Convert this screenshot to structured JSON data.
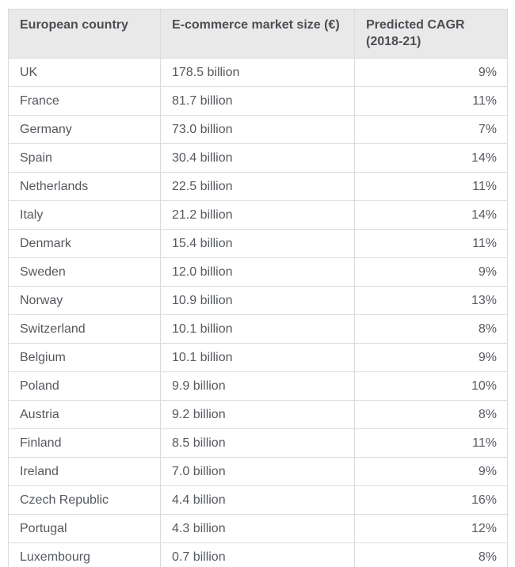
{
  "chart_data": {
    "type": "table",
    "title": "",
    "columns": [
      "European country",
      "E-commerce market size (€)",
      "Predicted CAGR (2018-21)"
    ],
    "rows": [
      [
        "UK",
        "178.5 billion",
        "9%"
      ],
      [
        "France",
        "81.7 billion",
        "11%"
      ],
      [
        "Germany",
        "73.0 billion",
        "7%"
      ],
      [
        "Spain",
        "30.4 billion",
        "14%"
      ],
      [
        "Netherlands",
        "22.5 billion",
        "11%"
      ],
      [
        "Italy",
        "21.2 billion",
        "14%"
      ],
      [
        "Denmark",
        "15.4 billion",
        "11%"
      ],
      [
        "Sweden",
        "12.0 billion",
        "9%"
      ],
      [
        "Norway",
        "10.9 billion",
        "13%"
      ],
      [
        "Switzerland",
        "10.1 billion",
        "8%"
      ],
      [
        "Belgium",
        "10.1 billion",
        "9%"
      ],
      [
        "Poland",
        "9.9 billion",
        "10%"
      ],
      [
        "Austria",
        "9.2 billion",
        "8%"
      ],
      [
        "Finland",
        "8.5 billion",
        "11%"
      ],
      [
        "Ireland",
        "7.0 billion",
        "9%"
      ],
      [
        "Czech Republic",
        "4.4 billion",
        "16%"
      ],
      [
        "Portugal",
        "4.3 billion",
        "12%"
      ],
      [
        "Luxembourg",
        "0.7 billion",
        "8%"
      ]
    ],
    "market_size_billions_eur": [
      178.5,
      81.7,
      73.0,
      30.4,
      22.5,
      21.2,
      15.4,
      12.0,
      10.9,
      10.1,
      10.1,
      9.9,
      9.2,
      8.5,
      7.0,
      4.4,
      4.3,
      0.7
    ],
    "predicted_cagr_percent": [
      9,
      11,
      7,
      14,
      11,
      14,
      11,
      9,
      13,
      8,
      9,
      10,
      8,
      11,
      9,
      16,
      12,
      8
    ],
    "legend_position": "none",
    "grid": true
  },
  "colors": {
    "header_background": "#e9e9e9",
    "header_text": "#4b4f54",
    "body_text": "#55595e",
    "border": "#d9dbde",
    "row_background": "#ffffff"
  }
}
